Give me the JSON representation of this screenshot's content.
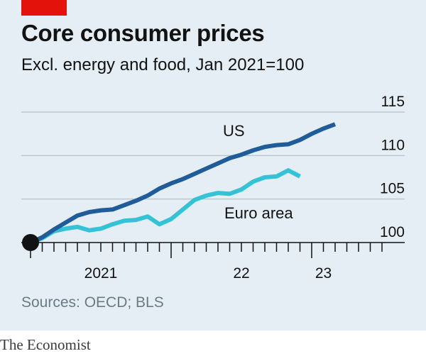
{
  "header": {
    "title": "Core consumer prices",
    "subtitle": "Excl. energy and food, Jan 2021=100"
  },
  "footer": {
    "source": "Sources: OECD; BLS",
    "brand": "The Economist"
  },
  "colors": {
    "background": "#e4eef4",
    "accent": "#e3120b",
    "us": "#1f5c99",
    "euro": "#36c2d6"
  },
  "chart_data": {
    "type": "line",
    "title": "Core consumer prices",
    "subtitle": "Excl. energy and food, Jan 2021=100",
    "y_axis": {
      "min": 100,
      "max": 115,
      "ticks": [
        100,
        105,
        110,
        115
      ],
      "position": "right",
      "grid": true
    },
    "x_axis": {
      "ticks": [
        "2021",
        "22",
        "23"
      ],
      "monthly_minor_ticks": true
    },
    "x_start": "2021-01",
    "series": [
      {
        "name": "US",
        "color": "#1f5c99",
        "values": [
          100.0,
          100.6,
          101.5,
          102.3,
          103.1,
          103.5,
          103.7,
          103.8,
          104.3,
          104.8,
          105.4,
          106.2,
          106.8,
          107.3,
          107.9,
          108.5,
          109.1,
          109.7,
          110.1,
          110.6,
          111.0,
          111.2,
          111.3,
          111.8,
          112.5,
          113.1,
          113.6
        ]
      },
      {
        "name": "Euro area",
        "color": "#36c2d6",
        "values": [
          100.0,
          100.5,
          101.3,
          101.6,
          101.8,
          101.4,
          101.6,
          102.1,
          102.5,
          102.6,
          103.0,
          102.1,
          102.7,
          103.8,
          104.9,
          105.4,
          105.7,
          105.6,
          106.1,
          107.0,
          107.5,
          107.6,
          108.3,
          107.6
        ]
      }
    ],
    "annotations": {
      "us_label": "US",
      "euro_label": "Euro area"
    }
  }
}
